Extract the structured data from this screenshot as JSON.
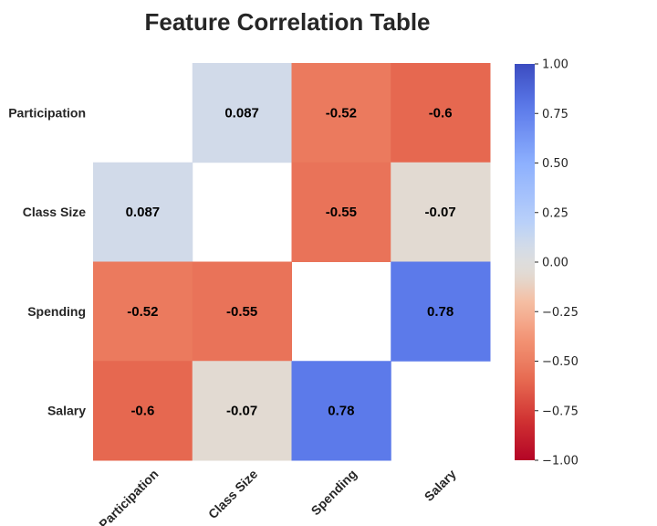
{
  "chart_data": {
    "type": "heatmap",
    "title": "Feature Correlation Table",
    "row_labels": [
      "Participation",
      "Class Size",
      "Spending",
      "Salary"
    ],
    "col_labels": [
      "Participation",
      "Class Size",
      "Spending",
      "Salary"
    ],
    "values": [
      [
        null,
        0.087,
        -0.52,
        -0.6
      ],
      [
        0.087,
        null,
        -0.55,
        -0.07
      ],
      [
        -0.52,
        -0.55,
        null,
        0.78
      ],
      [
        -0.6,
        -0.07,
        0.78,
        null
      ]
    ],
    "cell_labels": [
      [
        "",
        "0.087",
        "-0.52",
        "-0.6"
      ],
      [
        "0.087",
        "",
        "-0.55",
        "-0.07"
      ],
      [
        "-0.52",
        "-0.55",
        "",
        "0.78"
      ],
      [
        "-0.6",
        "-0.07",
        "0.78",
        ""
      ]
    ],
    "colormap": "coolwarm_r",
    "vmin": -1.0,
    "vmax": 1.0,
    "colorbar_ticks": [
      1.0,
      0.75,
      0.5,
      0.25,
      0.0,
      -0.25,
      -0.5,
      -0.75,
      -1.0
    ],
    "colorbar_tick_labels": [
      "1.00",
      "0.75",
      "0.50",
      "0.25",
      "0.00",
      "−0.25",
      "−0.50",
      "−0.75",
      "−1.00"
    ],
    "grid": false
  }
}
